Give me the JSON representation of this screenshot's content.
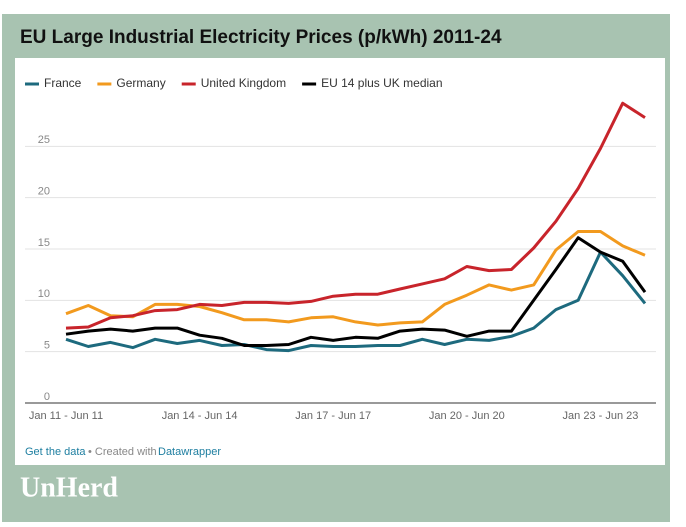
{
  "chart_data": {
    "type": "line",
    "title": "EU Large Industrial Electricity Prices (p/kWh) 2011-24",
    "categories": [
      "Jan 11 - Jun 11",
      null,
      null,
      null,
      null,
      null,
      "Jan 14 - Jun 14",
      null,
      null,
      null,
      null,
      null,
      "Jan 17 - Jun 17",
      null,
      null,
      null,
      null,
      null,
      "Jan 20 - Jun 20",
      null,
      null,
      null,
      null,
      null,
      "Jan 23 - Jun 23",
      null,
      null
    ],
    "series": [
      {
        "name": "France",
        "color": "#1d6a7e",
        "values": [
          6.2,
          5.5,
          5.9,
          5.4,
          6.2,
          5.8,
          6.1,
          5.6,
          5.7,
          5.2,
          5.1,
          5.6,
          5.5,
          5.5,
          5.6,
          5.6,
          6.2,
          5.7,
          6.2,
          6.1,
          6.5,
          7.3,
          9.1,
          10.0,
          14.7,
          12.4,
          9.7
        ]
      },
      {
        "name": "Germany",
        "color": "#f29a1e",
        "values": [
          8.7,
          9.5,
          8.5,
          8.4,
          9.6,
          9.6,
          9.4,
          8.8,
          8.1,
          8.1,
          7.9,
          8.3,
          8.4,
          7.9,
          7.6,
          7.8,
          7.9,
          9.6,
          10.5,
          11.5,
          11.0,
          11.5,
          14.9,
          16.7,
          16.7,
          15.3,
          14.4
        ]
      },
      {
        "name": "United Kingdom",
        "color": "#c8242b",
        "values": [
          7.3,
          7.4,
          8.3,
          8.5,
          9.0,
          9.1,
          9.6,
          9.5,
          9.8,
          9.8,
          9.7,
          9.9,
          10.4,
          10.6,
          10.6,
          11.1,
          11.6,
          12.1,
          13.3,
          12.9,
          13.0,
          15.1,
          17.7,
          20.9,
          24.8,
          29.2,
          27.8
        ]
      },
      {
        "name": "EU 14 plus UK median",
        "color": "#000000",
        "values": [
          6.7,
          7.0,
          7.2,
          7.0,
          7.3,
          7.3,
          6.6,
          6.3,
          5.6,
          5.6,
          5.7,
          6.4,
          6.1,
          6.4,
          6.3,
          7.0,
          7.2,
          7.1,
          6.5,
          7.0,
          7.0,
          10.0,
          13.0,
          16.1,
          14.7,
          13.8,
          10.8
        ]
      }
    ],
    "ylim": [
      0,
      30
    ],
    "yticks": [
      0,
      5,
      10,
      15,
      20,
      25
    ],
    "grid": true,
    "legend": "top",
    "footer": {
      "link": "Get the data",
      "separator": "• Created with",
      "tool": "Datawrapper"
    },
    "brand": "UnHerd"
  }
}
